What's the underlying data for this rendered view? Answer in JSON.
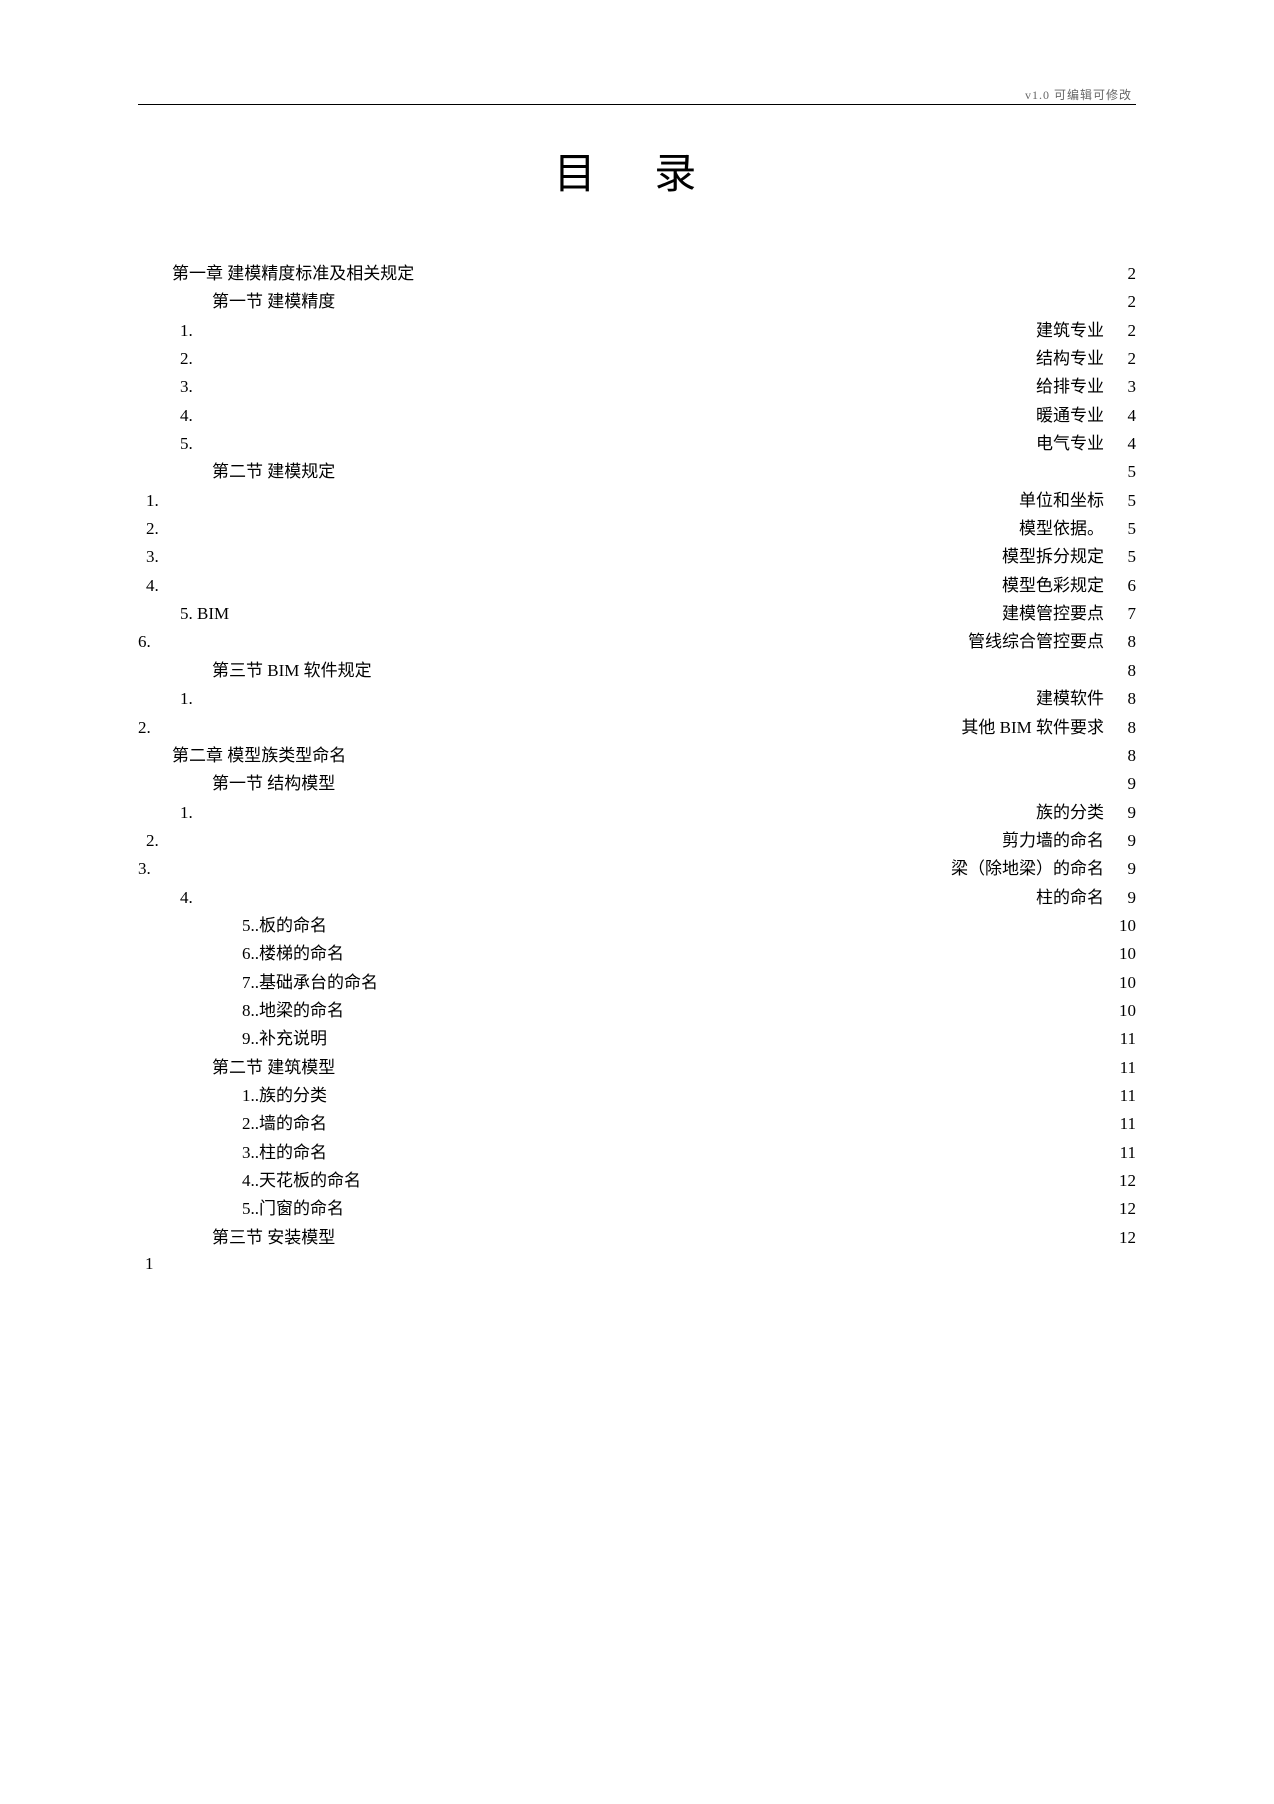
{
  "meta": {
    "header_text": "v1.0  可编辑可修改",
    "title": "目 录",
    "footer_page": "1"
  },
  "entries": [
    {
      "indent": "indent-0",
      "label": "第一章        建模精度标准及相关规定",
      "leader": true,
      "page": "2",
      "right": ""
    },
    {
      "indent": "indent-1",
      "label": "第一节   建模精度",
      "leader": true,
      "page": "2",
      "right": ""
    },
    {
      "indent": "indent-2",
      "label": "1.",
      "leader": false,
      "page": "2",
      "right": "建筑专业"
    },
    {
      "indent": "indent-2",
      "label": "2.",
      "leader": false,
      "page": "2",
      "right": "结构专业"
    },
    {
      "indent": "indent-2",
      "label": "3.",
      "leader": false,
      "page": "3",
      "right": "给排专业"
    },
    {
      "indent": "indent-2",
      "label": "4.",
      "leader": false,
      "page": "4",
      "right": "暖通专业"
    },
    {
      "indent": "indent-2",
      "label": "5.",
      "leader": false,
      "page": "4",
      "right": "电气专业"
    },
    {
      "indent": "indent-1",
      "label": "第二节   建模规定",
      "leader": true,
      "page": "5",
      "right": ""
    },
    {
      "indent": "indent-3",
      "label": "1.",
      "leader": false,
      "page": "5",
      "right": "单位和坐标"
    },
    {
      "indent": "indent-3",
      "label": "2.",
      "leader": false,
      "page": "5",
      "right": "模型依据。"
    },
    {
      "indent": "indent-3",
      "label": "3.",
      "leader": false,
      "page": "5",
      "right": "模型拆分规定"
    },
    {
      "indent": "indent-3",
      "label": "4.",
      "leader": false,
      "page": "6",
      "right": "模型色彩规定"
    },
    {
      "indent": "indent-2",
      "label": "5. BIM",
      "leader": false,
      "page": "7",
      "right": "建模管控要点"
    },
    {
      "indent": "indent-4",
      "label": "6.",
      "leader": false,
      "page": "8",
      "right": "管线综合管控要点"
    },
    {
      "indent": "indent-1",
      "label": "第三节 BIM 软件规定",
      "leader": true,
      "page": "8",
      "right": ""
    },
    {
      "indent": "indent-2",
      "label": "1.",
      "leader": false,
      "page": "8",
      "right": "建模软件"
    },
    {
      "indent": "indent-4",
      "label": "2.",
      "leader": false,
      "page": "8",
      "right": "其他 BIM 软件要求"
    },
    {
      "indent": "indent-0",
      "label": "第二章        模型族类型命名",
      "leader": true,
      "page": "8",
      "right": ""
    },
    {
      "indent": "indent-1",
      "label": "第一节   结构模型",
      "leader": true,
      "page": "9",
      "right": ""
    },
    {
      "indent": "indent-2",
      "label": "1.",
      "leader": false,
      "page": "9",
      "right": "族的分类"
    },
    {
      "indent": "indent-3",
      "label": "2.",
      "leader": false,
      "page": "9",
      "right": "剪力墙的命名"
    },
    {
      "indent": "indent-4",
      "label": "3.",
      "leader": false,
      "page": "9",
      "right": "梁（除地梁）的命名"
    },
    {
      "indent": "indent-2",
      "label": "4.",
      "leader": false,
      "page": "9",
      "right": "柱的命名"
    },
    {
      "indent": "indent-5",
      "label": "5..板的命名",
      "leader": false,
      "page": "10",
      "right": ""
    },
    {
      "indent": "indent-5",
      "label": "6..楼梯的命名",
      "leader": false,
      "page": "10",
      "right": ""
    },
    {
      "indent": "indent-5",
      "label": "7..基础承台的命名",
      "leader": false,
      "page": "10",
      "right": ""
    },
    {
      "indent": "indent-5",
      "label": "8..地梁的命名",
      "leader": false,
      "page": "10",
      "right": ""
    },
    {
      "indent": "indent-5",
      "label": "9..补充说明",
      "leader": false,
      "page": "11",
      "right": ""
    },
    {
      "indent": "indent-1",
      "label": "第二节   建筑模型",
      "leader": true,
      "page": "11",
      "right": ""
    },
    {
      "indent": "indent-5",
      "label": "1..族的分类",
      "leader": false,
      "page": "11",
      "right": ""
    },
    {
      "indent": "indent-5",
      "label": "2..墙的命名",
      "leader": false,
      "page": "11",
      "right": ""
    },
    {
      "indent": "indent-5",
      "label": "3..柱的命名",
      "leader": false,
      "page": "11",
      "right": ""
    },
    {
      "indent": "indent-5",
      "label": "4..天花板的命名",
      "leader": false,
      "page": "12",
      "right": ""
    },
    {
      "indent": "indent-5",
      "label": "5..门窗的命名",
      "leader": false,
      "page": "12",
      "right": ""
    },
    {
      "indent": "indent-1",
      "label": "第三节   安装模型",
      "leader": true,
      "page": "12",
      "right": ""
    }
  ]
}
